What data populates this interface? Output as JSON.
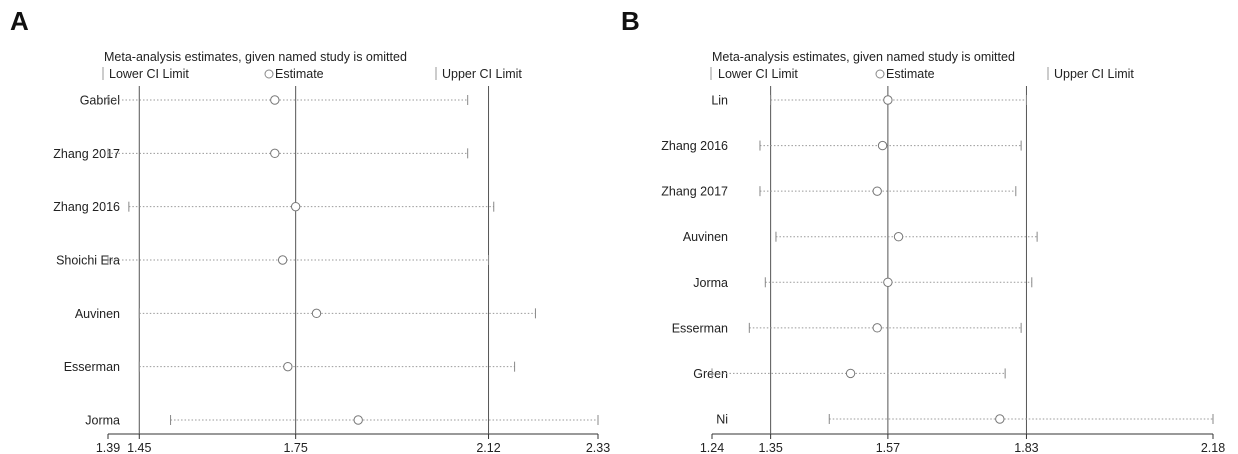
{
  "chart_data": [
    {
      "type": "scatter",
      "panel": "A",
      "title": "Meta-analysis estimates, given named study is omitted",
      "legend": {
        "lower": "Lower CI Limit",
        "estimate": "Estimate",
        "upper": "Upper CI Limit"
      },
      "xlim": [
        1.39,
        2.33
      ],
      "xticks": [
        {
          "value": 1.39,
          "label": "1.39"
        },
        {
          "value": 1.45,
          "label": "1.45"
        },
        {
          "value": 1.75,
          "label": "1.75"
        },
        {
          "value": 2.12,
          "label": "2.12"
        },
        {
          "value": 2.33,
          "label": "2.33"
        }
      ],
      "reference_lines": [
        1.45,
        1.75,
        2.12
      ],
      "studies": [
        {
          "name": "Gabriel",
          "lower": 1.39,
          "estimate": 1.71,
          "upper": 2.08
        },
        {
          "name": "Zhang 2017",
          "lower": 1.39,
          "estimate": 1.71,
          "upper": 2.08
        },
        {
          "name": "Zhang 2016",
          "lower": 1.43,
          "estimate": 1.75,
          "upper": 2.13
        },
        {
          "name": "Shoichi Era",
          "lower": 1.39,
          "estimate": 1.725,
          "upper": 2.12
        },
        {
          "name": "Auvinen",
          "lower": 1.45,
          "estimate": 1.79,
          "upper": 2.21
        },
        {
          "name": "Esserman",
          "lower": 1.45,
          "estimate": 1.735,
          "upper": 2.17
        },
        {
          "name": "Jorma",
          "lower": 1.51,
          "estimate": 1.87,
          "upper": 2.33
        }
      ]
    },
    {
      "type": "scatter",
      "panel": "B",
      "title": "Meta-analysis estimates, given named study is omitted",
      "legend": {
        "lower": "Lower CI Limit",
        "estimate": "Estimate",
        "upper": "Upper CI Limit"
      },
      "xlim": [
        1.24,
        2.18
      ],
      "xticks": [
        {
          "value": 1.24,
          "label": "1.24"
        },
        {
          "value": 1.35,
          "label": "1.35"
        },
        {
          "value": 1.57,
          "label": "1.57"
        },
        {
          "value": 1.83,
          "label": "1.83"
        },
        {
          "value": 2.18,
          "label": "2.18"
        }
      ],
      "reference_lines": [
        1.35,
        1.57,
        1.83
      ],
      "studies": [
        {
          "name": "Lin",
          "lower": 1.35,
          "estimate": 1.57,
          "upper": 1.83
        },
        {
          "name": "Zhang 2016",
          "lower": 1.33,
          "estimate": 1.56,
          "upper": 1.82
        },
        {
          "name": "Zhang 2017",
          "lower": 1.33,
          "estimate": 1.55,
          "upper": 1.81
        },
        {
          "name": "Auvinen",
          "lower": 1.36,
          "estimate": 1.59,
          "upper": 1.85
        },
        {
          "name": "Jorma",
          "lower": 1.34,
          "estimate": 1.57,
          "upper": 1.84
        },
        {
          "name": "Esserman",
          "lower": 1.31,
          "estimate": 1.55,
          "upper": 1.82
        },
        {
          "name": "Green",
          "lower": 1.24,
          "estimate": 1.5,
          "upper": 1.79
        },
        {
          "name": "Ni",
          "lower": 1.46,
          "estimate": 1.78,
          "upper": 2.18
        }
      ]
    }
  ]
}
